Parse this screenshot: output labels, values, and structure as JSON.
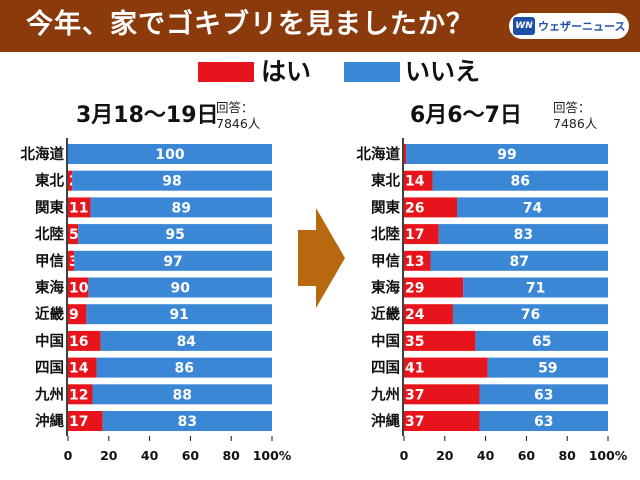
{
  "title": "今年、家でゴキブリを見ましたか？",
  "logo_text": "ウェザーニュース",
  "logo_mark": "WN",
  "legend": [
    {
      "label": "はい",
      "color": "#e8141b"
    },
    {
      "label": "いいえ",
      "color": "#3a87d6"
    }
  ],
  "colors": {
    "yes": "#e8141b",
    "no": "#3a87d6",
    "arrow": "#b8680f",
    "header": "#8a3a0b"
  },
  "chart_data": [
    {
      "type": "bar",
      "stacked": true,
      "orientation": "horizontal",
      "title": "3月18〜19日",
      "respondents_label": "回答：",
      "respondents": "7846人",
      "categories": [
        "北海道",
        "東北",
        "関東",
        "北陸",
        "甲信",
        "東海",
        "近畿",
        "中国",
        "四国",
        "九州",
        "沖縄"
      ],
      "series": [
        {
          "name": "はい",
          "values": [
            0,
            2,
            11,
            5,
            3,
            10,
            9,
            16,
            14,
            12,
            17
          ]
        },
        {
          "name": "いいえ",
          "values": [
            100,
            98,
            89,
            95,
            97,
            90,
            91,
            84,
            86,
            88,
            83
          ]
        }
      ],
      "xlim": [
        0,
        100
      ],
      "xticks": [
        "0",
        "20",
        "40",
        "60",
        "80",
        "100%"
      ]
    },
    {
      "type": "bar",
      "stacked": true,
      "orientation": "horizontal",
      "title": "6月6〜7日",
      "respondents_label": "回答：",
      "respondents": "7486人",
      "categories": [
        "北海道",
        "東北",
        "関東",
        "北陸",
        "甲信",
        "東海",
        "近畿",
        "中国",
        "四国",
        "九州",
        "沖縄"
      ],
      "series": [
        {
          "name": "はい",
          "values": [
            1,
            14,
            26,
            17,
            13,
            29,
            24,
            35,
            41,
            37,
            37
          ]
        },
        {
          "name": "いいえ",
          "values": [
            99,
            86,
            74,
            83,
            87,
            71,
            76,
            65,
            59,
            63,
            63
          ]
        }
      ],
      "xlim": [
        0,
        100
      ],
      "xticks": [
        "0",
        "20",
        "40",
        "60",
        "80",
        "100%"
      ]
    }
  ]
}
